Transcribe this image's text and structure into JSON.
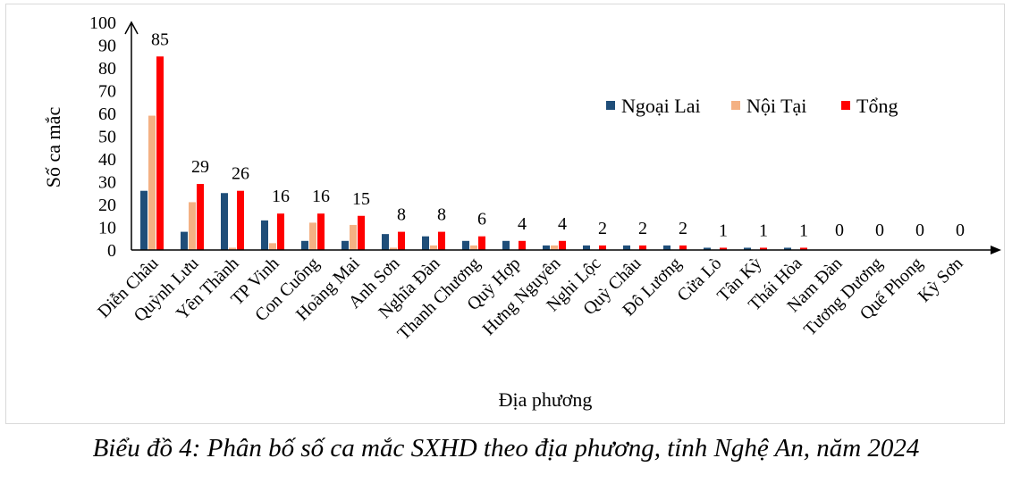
{
  "chart_data": {
    "type": "bar",
    "title": "",
    "xlabel": "Địa phương",
    "ylabel": "Số ca mắc",
    "ylim": [
      0,
      100
    ],
    "yticks": [
      0,
      10,
      20,
      30,
      40,
      50,
      60,
      70,
      80,
      90,
      100
    ],
    "legend_position": "top-right",
    "grid": false,
    "categories": [
      "Diễn Châu",
      "Quỳnh Lưu",
      "Yên Thành",
      "TP Vinh",
      "Con Cuông",
      "Hoàng Mai",
      "Anh Sơn",
      "Nghĩa Đàn",
      "Thanh Chương",
      "Quỳ Hợp",
      "Hưng Nguyên",
      "Nghi Lộc",
      "Quỳ Châu",
      "Đô Lương",
      "Cửa Lò",
      "Tân Kỳ",
      "Thái Hòa",
      "Nam Đàn",
      "Tương Dương",
      "Quế Phong",
      "Kỳ Sơn"
    ],
    "series": [
      {
        "name": "Ngoại Lai",
        "color": "#1f4e79",
        "values": [
          26,
          8,
          25,
          13,
          4,
          4,
          7,
          6,
          4,
          4,
          2,
          2,
          2,
          2,
          1,
          1,
          1,
          0,
          0,
          0,
          0
        ]
      },
      {
        "name": "Nội Tại",
        "color": "#f4b183",
        "values": [
          59,
          21,
          1,
          3,
          12,
          11,
          1,
          2,
          2,
          0,
          2,
          0,
          0,
          0,
          0,
          0,
          0,
          0,
          0,
          0,
          0
        ]
      },
      {
        "name": "Tổng",
        "color": "#ff0000",
        "values": [
          85,
          29,
          26,
          16,
          16,
          15,
          8,
          8,
          6,
          4,
          4,
          2,
          2,
          2,
          1,
          1,
          1,
          0,
          0,
          0,
          0
        ]
      }
    ],
    "data_labels_series": "Tổng"
  },
  "caption": "Biểu đồ 4: Phân bố số ca mắc SXHD theo địa phương, tỉnh Nghệ An, năm 2024"
}
